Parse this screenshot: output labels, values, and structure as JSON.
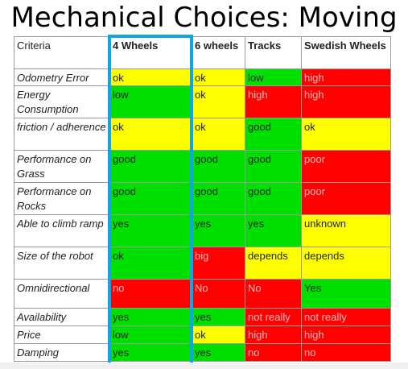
{
  "title": "Mechanical Choices: Moving",
  "headers": [
    "Criteria",
    "4 Wheels",
    "6 wheels",
    "Tracks",
    "Swedish Wheels"
  ],
  "rows": [
    {
      "criteria": "Odometry Error",
      "cells": [
        {
          "text": "ok",
          "color": "yellow"
        },
        {
          "text": "ok",
          "color": "yellow"
        },
        {
          "text": "low",
          "color": "green"
        },
        {
          "text": "high",
          "color": "red"
        }
      ]
    },
    {
      "criteria": "Energy Consumption",
      "cells": [
        {
          "text": "low",
          "color": "green"
        },
        {
          "text": "ok",
          "color": "yellow"
        },
        {
          "text": "high",
          "color": "red"
        },
        {
          "text": "high",
          "color": "red"
        }
      ]
    },
    {
      "criteria": "friction / adherence",
      "cells": [
        {
          "text": "ok",
          "color": "yellow"
        },
        {
          "text": "ok",
          "color": "yellow"
        },
        {
          "text": "good",
          "color": "green"
        },
        {
          "text": "ok",
          "color": "yellow"
        }
      ]
    },
    {
      "criteria": "Performance on Grass",
      "cells": [
        {
          "text": "good",
          "color": "green"
        },
        {
          "text": "good",
          "color": "green"
        },
        {
          "text": "good",
          "color": "green"
        },
        {
          "text": "poor",
          "color": "red"
        }
      ]
    },
    {
      "criteria": "Performance on Rocks",
      "cells": [
        {
          "text": "good",
          "color": "green"
        },
        {
          "text": "good",
          "color": "green"
        },
        {
          "text": "good",
          "color": "green"
        },
        {
          "text": "poor",
          "color": "red"
        }
      ]
    },
    {
      "criteria": "Able to climb ramp",
      "cells": [
        {
          "text": "yes",
          "color": "green"
        },
        {
          "text": "yes",
          "color": "green"
        },
        {
          "text": "yes",
          "color": "green"
        },
        {
          "text": "unknown",
          "color": "yellow"
        }
      ]
    },
    {
      "criteria": "Size of the robot",
      "cells": [
        {
          "text": "ok",
          "color": "green"
        },
        {
          "text": "big",
          "color": "red"
        },
        {
          "text": "depends",
          "color": "yellow"
        },
        {
          "text": "depends",
          "color": "yellow"
        }
      ]
    },
    {
      "criteria": "Omnidirectional",
      "cells": [
        {
          "text": "no",
          "color": "red"
        },
        {
          "text": "No",
          "color": "red"
        },
        {
          "text": "No",
          "color": "red"
        },
        {
          "text": "Yes",
          "color": "green"
        }
      ]
    },
    {
      "criteria": "Availability",
      "cells": [
        {
          "text": "yes",
          "color": "green"
        },
        {
          "text": "yes",
          "color": "green"
        },
        {
          "text": "not really",
          "color": "red"
        },
        {
          "text": "not really",
          "color": "red"
        }
      ]
    },
    {
      "criteria": "Price",
      "cells": [
        {
          "text": "low",
          "color": "green"
        },
        {
          "text": "ok",
          "color": "yellow"
        },
        {
          "text": "high",
          "color": "red"
        },
        {
          "text": "high",
          "color": "red"
        }
      ]
    },
    {
      "criteria": "Damping",
      "cells": [
        {
          "text": "yes",
          "color": "green"
        },
        {
          "text": "yes",
          "color": "green"
        },
        {
          "text": "no",
          "color": "red"
        },
        {
          "text": "no",
          "color": "red"
        }
      ]
    }
  ],
  "highlighted_column": "4 Wheels",
  "colors": {
    "green": "#00e000",
    "yellow": "#ffff00",
    "red": "#ff0000",
    "highlight": "#11a6e3"
  }
}
